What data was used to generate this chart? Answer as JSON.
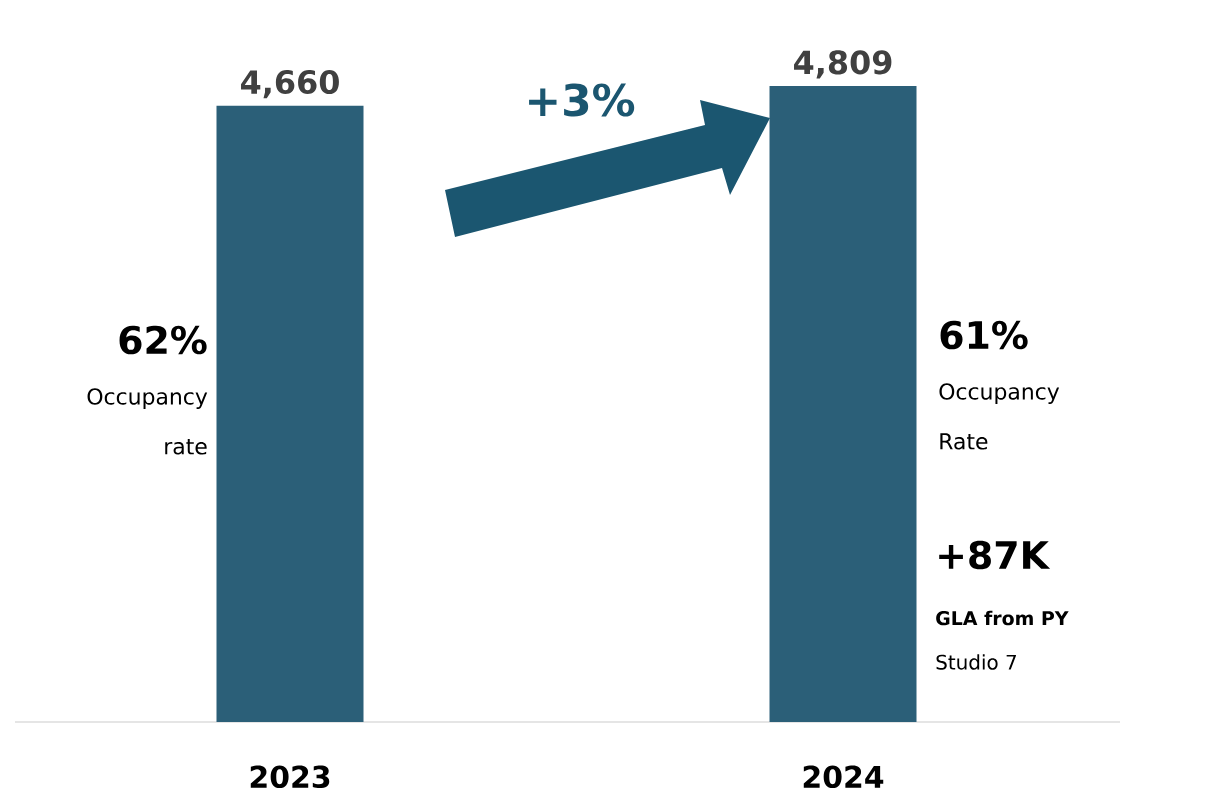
{
  "chart_data": {
    "type": "bar",
    "categories": [
      "2023",
      "2024"
    ],
    "values": [
      4660,
      4809
    ],
    "value_labels": [
      "4,660",
      "4,809"
    ],
    "color": "#2b5f78",
    "annotations": [
      "+3%",
      "62%",
      "Occupancy rate",
      "61%",
      "Occupancy Rate",
      "+87K",
      "GLA from PY",
      "Studio 7"
    ]
  }
}
